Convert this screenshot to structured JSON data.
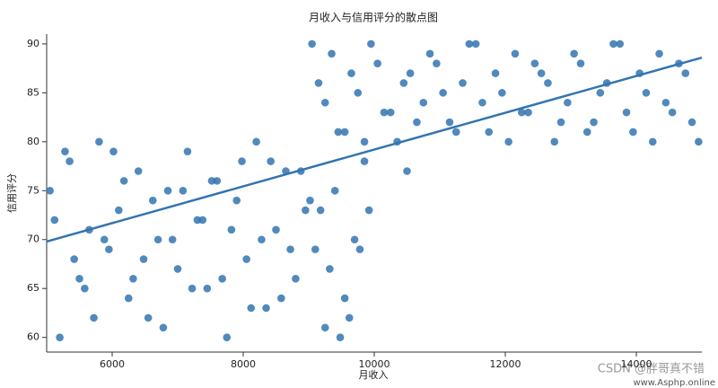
{
  "chart_data": {
    "type": "scatter",
    "title": "月收入与信用评分的散点图",
    "xlabel": "月收入",
    "ylabel": "信用评分",
    "xlim": [
      5000,
      15000
    ],
    "ylim": [
      58.5,
      91
    ],
    "xticks": [
      6000,
      8000,
      10000,
      12000,
      14000
    ],
    "yticks": [
      60,
      65,
      70,
      75,
      80,
      85,
      90
    ],
    "color": "#3274b0",
    "x": [
      5050,
      5200,
      5350,
      5500,
      5650,
      5800,
      5950,
      6100,
      6250,
      6400,
      6550,
      6700,
      6850,
      7000,
      7150,
      7300,
      7450,
      7600,
      7750,
      7900,
      8050,
      8200,
      8350,
      8500,
      8650,
      8800,
      8950,
      9100,
      9250,
      9400,
      9550,
      9700,
      9850,
      5120,
      5420,
      5720,
      6020,
      6320,
      6620,
      6920,
      7220,
      7520,
      7820,
      8120,
      8420,
      8720,
      9020,
      9320,
      9620,
      9920,
      5280,
      5580,
      5880,
      6180,
      6480,
      6780,
      7080,
      7380,
      7680,
      7980,
      8280,
      8580,
      8880,
      9180,
      9480,
      9780,
      9050,
      9250,
      9450,
      9650,
      9850,
      10050,
      10250,
      10450,
      10650,
      10850,
      11050,
      11250,
      11450,
      11650,
      11850,
      12050,
      12250,
      12450,
      12650,
      12850,
      13050,
      13250,
      13450,
      13650,
      13850,
      14050,
      14250,
      14450,
      14650,
      14850,
      9150,
      9350,
      9550,
      9750,
      9950,
      10150,
      10350,
      10550,
      10750,
      10950,
      11150,
      11350,
      11550,
      11750,
      11950,
      12150,
      12350,
      12550,
      12750,
      12950,
      13150,
      13350,
      13550,
      13750,
      13950,
      14150,
      14350,
      14550,
      14750,
      14950,
      10500
    ],
    "y": [
      75,
      60,
      78,
      66,
      71,
      80,
      69,
      73,
      64,
      77,
      62,
      70,
      75,
      67,
      79,
      72,
      65,
      76,
      60,
      74,
      68,
      80,
      63,
      71,
      77,
      66,
      73,
      69,
      61,
      75,
      64,
      70,
      78,
      72,
      68,
      62,
      79,
      66,
      74,
      70,
      65,
      76,
      71,
      63,
      78,
      69,
      74,
      67,
      62,
      73,
      79,
      65,
      70,
      76,
      68,
      61,
      75,
      72,
      66,
      78,
      70,
      64,
      77,
      73,
      60,
      69,
      90,
      84,
      81,
      87,
      80,
      88,
      83,
      86,
      82,
      89,
      85,
      81,
      90,
      84,
      87,
      80,
      83,
      88,
      86,
      82,
      89,
      81,
      85,
      90,
      83,
      87,
      80,
      84,
      88,
      82,
      86,
      89,
      81,
      85,
      90,
      83,
      80,
      87,
      84,
      88,
      82,
      86,
      90,
      81,
      85,
      89,
      83,
      87,
      80,
      84,
      88,
      82,
      86,
      90,
      81,
      85,
      89,
      83,
      87,
      80,
      77
    ],
    "regression_line": {
      "x": [
        5000,
        15000
      ],
      "y": [
        69.8,
        88.6
      ]
    },
    "annotations": [
      "CSDN @胖哥真不错",
      "www.Asphp.online"
    ]
  }
}
